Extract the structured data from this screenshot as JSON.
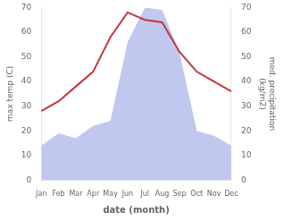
{
  "chart_data": {
    "type": "line",
    "categories": [
      "Jan",
      "Feb",
      "Mar",
      "Apr",
      "May",
      "Jun",
      "Jul",
      "Aug",
      "Sep",
      "Oct",
      "Nov",
      "Dec"
    ],
    "xlabel": "date (month)",
    "ylabel": "max temp (C)",
    "y2label": "med. precipitation\n(kg/m2)",
    "series": [
      {
        "type": "area",
        "axis": "y2",
        "color": "#c0c8f0",
        "values": [
          14,
          19,
          17,
          22,
          24,
          56,
          70,
          69,
          52,
          20,
          18,
          14
        ]
      },
      {
        "type": "line",
        "color": "#c0393b",
        "values": [
          28,
          32,
          38,
          44,
          58,
          68,
          65,
          64,
          52,
          44,
          40,
          36
        ]
      }
    ],
    "ylim": [
      0,
      70
    ],
    "yticks": [
      0,
      10,
      20,
      30,
      40,
      50,
      60,
      70
    ],
    "y2lim": [
      0,
      70
    ],
    "y2ticks": [
      0,
      10,
      20,
      30,
      40,
      50,
      60,
      70
    ],
    "grid": false
  }
}
